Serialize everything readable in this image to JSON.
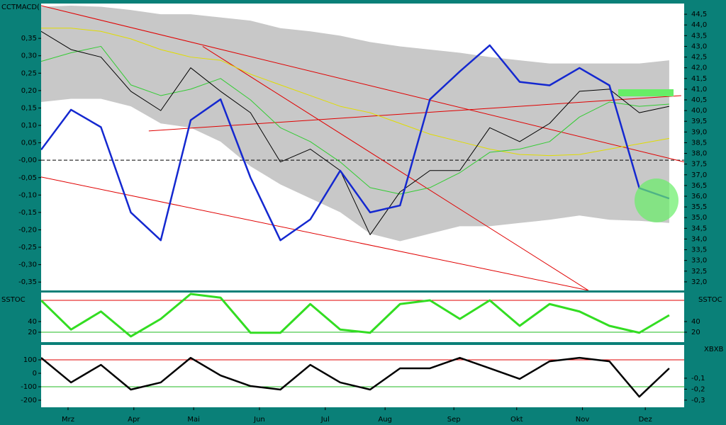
{
  "chart_data": [
    {
      "type": "line",
      "title": "CCTMACD(",
      "xlim": [
        0,
        215
      ],
      "ylim": [
        -0.374,
        0.45
      ],
      "y2lim": [
        31.6,
        45.0
      ],
      "x": [
        0,
        10,
        20,
        30,
        40,
        50,
        60,
        70,
        80,
        90,
        100,
        110,
        120,
        130,
        140,
        150,
        160,
        170,
        180,
        190,
        200,
        210
      ],
      "yticks": [
        {
          "value": 0.35,
          "label": "0,35"
        },
        {
          "value": 0.3,
          "label": "0,30"
        },
        {
          "value": 0.25,
          "label": "0,25"
        },
        {
          "value": 0.2,
          "label": "0,20"
        },
        {
          "value": 0.15,
          "label": "0,15"
        },
        {
          "value": 0.1,
          "label": "0,10"
        },
        {
          "value": 0.05,
          "label": "0,05"
        },
        {
          "value": 0,
          "label": "-0,00"
        },
        {
          "value": -0.05,
          "label": "-0,05"
        },
        {
          "value": -0.1,
          "label": "-0,10"
        },
        {
          "value": -0.15,
          "label": "-0,15"
        },
        {
          "value": -0.2,
          "label": "-0,20"
        },
        {
          "value": -0.25,
          "label": "-0,25"
        },
        {
          "value": -0.3,
          "label": "-0,30"
        },
        {
          "value": -0.35,
          "label": "-0,35"
        }
      ],
      "y2ticks": [
        {
          "value": 44.5,
          "label": "44,5"
        },
        {
          "value": 44,
          "label": "44,0"
        },
        {
          "value": 43.5,
          "label": "43,5"
        },
        {
          "value": 43,
          "label": "43,0"
        },
        {
          "value": 42.5,
          "label": "42,5"
        },
        {
          "value": 42,
          "label": "42,0"
        },
        {
          "value": 41.5,
          "label": "41,5"
        },
        {
          "value": 41,
          "label": "41,0"
        },
        {
          "value": 40.5,
          "label": "40,5"
        },
        {
          "value": 40,
          "label": "40,0"
        },
        {
          "value": 39.5,
          "label": "39,5"
        },
        {
          "value": 39,
          "label": "39,0"
        },
        {
          "value": 38.5,
          "label": "38,5"
        },
        {
          "value": 38,
          "label": "38,0"
        },
        {
          "value": 37.5,
          "label": "37,5"
        },
        {
          "value": 37,
          "label": "37,0"
        },
        {
          "value": 36.5,
          "label": "36,5"
        },
        {
          "value": 36,
          "label": "36,0"
        },
        {
          "value": 35.5,
          "label": "35,5"
        },
        {
          "value": 35,
          "label": "35,0"
        },
        {
          "value": 34.5,
          "label": "34,5"
        },
        {
          "value": 34,
          "label": "34,0"
        },
        {
          "value": 33.5,
          "label": "33,5"
        },
        {
          "value": 33,
          "label": "33,0"
        },
        {
          "value": 32.5,
          "label": "32,5"
        },
        {
          "value": 32,
          "label": "32,0"
        }
      ],
      "bands": [
        {
          "color": "#c8c8c8",
          "axis": "y2",
          "upper": [
            44.85,
            44.9,
            44.85,
            44.7,
            44.5,
            44.5,
            44.35,
            44.2,
            43.85,
            43.7,
            43.5,
            43.2,
            43.0,
            42.85,
            42.7,
            42.5,
            42.35,
            42.2,
            42.2,
            42.2,
            42.2,
            42.35
          ],
          "lower": [
            40.4,
            40.55,
            40.55,
            40.2,
            39.4,
            39.2,
            38.55,
            37.4,
            36.55,
            35.9,
            35.25,
            34.25,
            33.9,
            34.25,
            34.6,
            34.6,
            34.75,
            34.9,
            35.1,
            34.9,
            34.85,
            34.75
          ]
        }
      ],
      "hlines": [
        {
          "value": 0,
          "color": "#000000",
          "dashed": true
        }
      ],
      "lines": [
        {
          "color": "#e00000",
          "axis": "y2",
          "x": [
            0,
            215
          ],
          "values": [
            44.9,
            37.6
          ]
        },
        {
          "color": "#e00000",
          "axis": "y2",
          "x": [
            0,
            183
          ],
          "values": [
            36.9,
            31.6
          ]
        },
        {
          "color": "#e00000",
          "axis": "y2",
          "x": [
            36,
            214
          ],
          "values": [
            39.05,
            40.7
          ]
        },
        {
          "color": "#e00000",
          "axis": "y2",
          "x": [
            54,
            183
          ],
          "values": [
            43.0,
            31.6
          ]
        }
      ],
      "series": [
        {
          "color": "#e0dc00",
          "axis": "y2",
          "width": 1,
          "values": [
            43.85,
            43.85,
            43.7,
            43.35,
            42.85,
            42.5,
            42.35,
            41.7,
            41.2,
            40.7,
            40.2,
            39.9,
            39.4,
            38.9,
            38.55,
            38.2,
            37.95,
            37.9,
            37.95,
            38.2,
            38.45,
            38.7
          ]
        },
        {
          "color": "#33cc33",
          "axis": "y2",
          "width": 1,
          "values": [
            42.3,
            42.7,
            43.0,
            41.2,
            40.7,
            41.0,
            41.5,
            40.5,
            39.2,
            38.55,
            37.6,
            36.4,
            36.1,
            36.4,
            37.1,
            38.05,
            38.2,
            38.55,
            39.7,
            40.4,
            40.2,
            40.3
          ]
        },
        {
          "color": "#000000",
          "axis": "y2",
          "width": 1,
          "values": [
            43.7,
            42.85,
            42.5,
            40.9,
            40.0,
            42.0,
            40.9,
            39.9,
            37.6,
            38.2,
            37.2,
            34.2,
            36.2,
            37.2,
            37.2,
            39.2,
            38.55,
            39.4,
            40.9,
            41.0,
            39.9,
            40.2
          ]
        },
        {
          "color": "#1428d0",
          "axis": "y",
          "width": 2.5,
          "values": [
            0.03,
            0.145,
            0.095,
            -0.15,
            -0.23,
            0.115,
            0.175,
            -0.05,
            -0.23,
            -0.17,
            -0.03,
            -0.15,
            -0.13,
            0.175,
            0.255,
            0.33,
            0.225,
            0.215,
            0.265,
            0.215,
            -0.08,
            -0.11
          ]
        }
      ]
    },
    {
      "type": "line",
      "title": "SSTOC",
      "xlim": [
        0,
        215
      ],
      "ylim": [
        1.3,
        94.7
      ],
      "x": [
        0,
        10,
        20,
        30,
        40,
        50,
        60,
        70,
        80,
        90,
        100,
        110,
        120,
        130,
        140,
        150,
        160,
        170,
        180,
        190,
        200,
        210
      ],
      "yticks": [
        40,
        20
      ],
      "y2ticks": [
        40,
        20
      ],
      "hlines": [
        {
          "value": 80,
          "color": "#e00000"
        },
        {
          "value": 20,
          "color": "#22bb22"
        }
      ],
      "series": [
        {
          "color": "#33dd22",
          "axis": "y",
          "width": 3,
          "values": [
            80,
            25,
            59,
            12,
            45,
            92,
            85,
            19,
            19,
            73,
            25,
            19,
            73,
            80,
            45,
            80,
            32,
            73,
            59,
            32,
            19,
            52
          ]
        }
      ]
    },
    {
      "type": "line",
      "title": "XBXB",
      "xlim": [
        0,
        215
      ],
      "ylim": [
        -252.6,
        210.5
      ],
      "y2lim": [
        -0.365,
        0.203
      ],
      "x": [
        0,
        10,
        20,
        30,
        40,
        50,
        60,
        70,
        80,
        90,
        100,
        110,
        120,
        130,
        140,
        150,
        160,
        170,
        180,
        190,
        200,
        210
      ],
      "yticks": [
        100,
        0,
        -100,
        -200
      ],
      "y2ticks": [
        {
          "value": -0.1,
          "label": "-0,1"
        },
        {
          "value": -0.2,
          "label": "-0,2"
        },
        {
          "value": -0.3,
          "label": "-0,3"
        }
      ],
      "xticks": [
        {
          "value": 9,
          "label": "Mrz"
        },
        {
          "value": 31,
          "label": "Apr"
        },
        {
          "value": 51,
          "label": "Mai"
        },
        {
          "value": 73,
          "label": "Jun"
        },
        {
          "value": 95,
          "label": "Jul"
        },
        {
          "value": 115,
          "label": "Aug"
        },
        {
          "value": 138,
          "label": "Sep"
        },
        {
          "value": 159,
          "label": "Okt"
        },
        {
          "value": 181,
          "label": "Nov"
        },
        {
          "value": 202,
          "label": "Dez"
        }
      ],
      "hlines": [
        {
          "value": 100,
          "color": "#e00000"
        },
        {
          "value": -100,
          "color": "#22bb22"
        }
      ],
      "series": [
        {
          "color": "#000000",
          "axis": "y",
          "width": 2.5,
          "values": [
            115,
            -68,
            63,
            -121,
            -68,
            115,
            -16,
            -95,
            -121,
            63,
            -68,
            -121,
            37,
            37,
            115,
            37,
            -42,
            89,
            115,
            89,
            -174,
            37
          ]
        }
      ]
    }
  ]
}
